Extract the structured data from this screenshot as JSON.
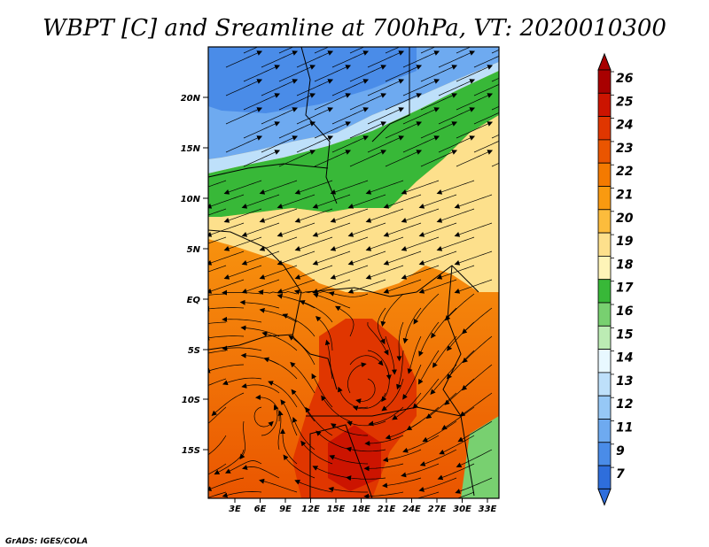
{
  "title": "WBPT [C] and Sreamline at 700hPa, VT: 2020010300",
  "credit": "GrADS: IGES/COLA",
  "y_ticks": [
    "20N",
    "15N",
    "10N",
    "5N",
    "EQ",
    "5S",
    "10S",
    "15S"
  ],
  "x_ticks": [
    "3E",
    "6E",
    "9E",
    "12E",
    "15E",
    "18E",
    "21E",
    "24E",
    "27E",
    "30E",
    "33E"
  ],
  "colorbar": {
    "labels": [
      "26",
      "25",
      "24",
      "23",
      "22",
      "21",
      "20",
      "19",
      "18",
      "17",
      "16",
      "15",
      "14",
      "13",
      "12",
      "11",
      "9",
      "7"
    ],
    "colors": [
      "#a80000",
      "#cc1400",
      "#e03600",
      "#ea5500",
      "#f47a00",
      "#f99a10",
      "#fcbc3c",
      "#fde08c",
      "#fef4b8",
      "#38b838",
      "#78d070",
      "#bcecb4",
      "#e8f8ff",
      "#bee0fa",
      "#96c8f6",
      "#6eaaf0",
      "#4a8ce8",
      "#2e6edc"
    ]
  }
}
